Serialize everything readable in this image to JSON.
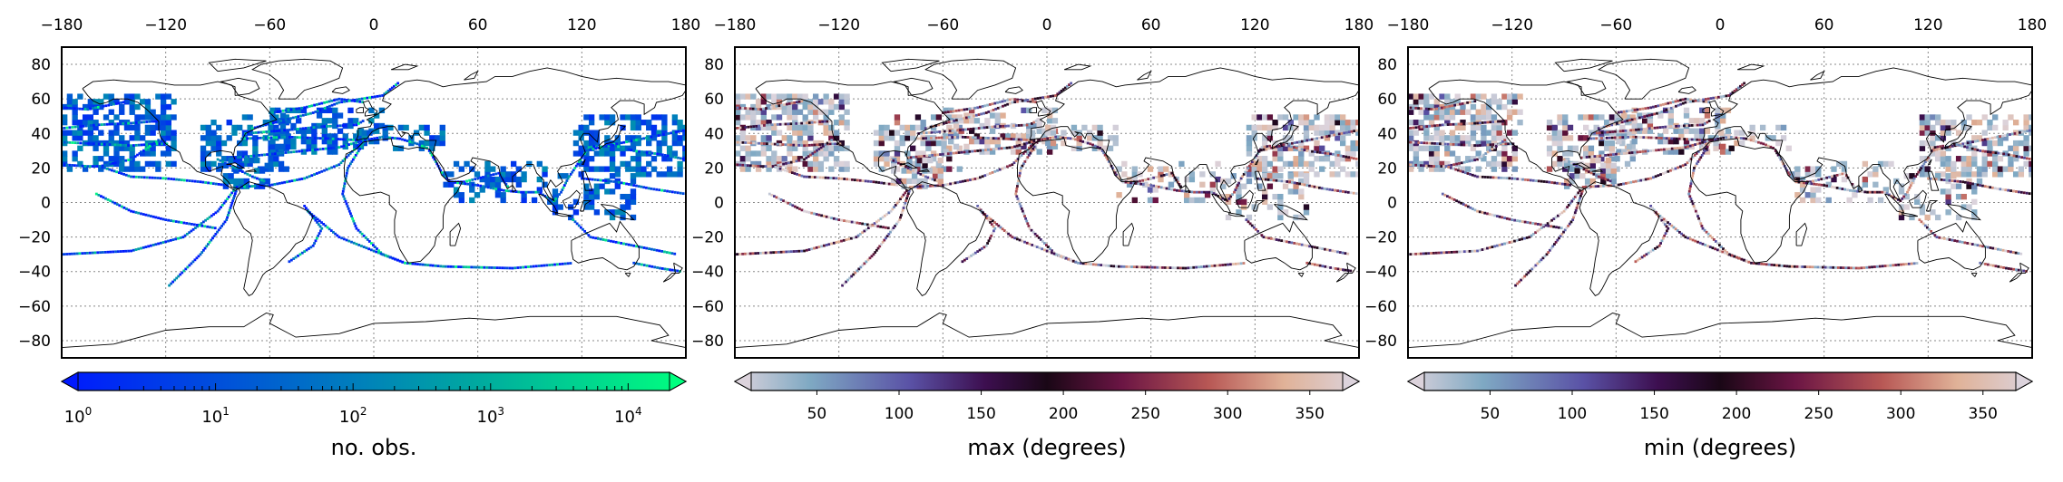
{
  "maps": {
    "lon_ticks": [
      "−180",
      "−120",
      "−60",
      "0",
      "60",
      "120",
      "180"
    ],
    "lat_ticks": [
      "80",
      "60",
      "40",
      "20",
      "0",
      "−20",
      "−40",
      "−60",
      "−80"
    ],
    "lon_values": [
      -180,
      -120,
      -60,
      0,
      60,
      120,
      180
    ],
    "lat_values": [
      80,
      60,
      40,
      20,
      0,
      -20,
      -40,
      -60,
      -80
    ],
    "lon_range": [
      -180,
      180
    ],
    "lat_range": [
      -90,
      90
    ],
    "grid": "dotted"
  },
  "panels": [
    {
      "colorbar": {
        "label": "no. obs.",
        "scale": "log",
        "extend": "both",
        "range": [
          1,
          20000
        ],
        "colors": [
          "#0019ff",
          "#0060d0",
          "#00a8a0",
          "#00ff7f"
        ],
        "ticks": [
          {
            "base": "10",
            "exp": "0",
            "value": 1
          },
          {
            "base": "10",
            "exp": "1",
            "value": 10
          },
          {
            "base": "10",
            "exp": "2",
            "value": 100
          },
          {
            "base": "10",
            "exp": "3",
            "value": 1000
          },
          {
            "base": "10",
            "exp": "4",
            "value": 10000
          }
        ]
      }
    },
    {
      "colorbar": {
        "label": "max (degrees)",
        "scale": "linear",
        "extend": "both",
        "range": [
          10,
          370
        ],
        "colors": [
          "#dcd3dc",
          "#7fa9c3",
          "#5a52a6",
          "#3d0f50",
          "#1a0716",
          "#6b1544",
          "#b85855",
          "#e0b298",
          "#dcd3dc"
        ],
        "ticks": [
          "50",
          "100",
          "150",
          "200",
          "250",
          "300",
          "350"
        ],
        "tick_values": [
          50,
          100,
          150,
          200,
          250,
          300,
          350
        ]
      }
    },
    {
      "colorbar": {
        "label": "min (degrees)",
        "scale": "linear",
        "extend": "both",
        "range": [
          10,
          370
        ],
        "colors": [
          "#dcd3dc",
          "#7fa9c3",
          "#5a52a6",
          "#3d0f50",
          "#1a0716",
          "#6b1544",
          "#b85855",
          "#e0b298",
          "#dcd3dc"
        ],
        "ticks": [
          "50",
          "100",
          "150",
          "200",
          "250",
          "300",
          "350"
        ],
        "tick_values": [
          50,
          100,
          150,
          200,
          250,
          300,
          350
        ]
      }
    }
  ]
}
